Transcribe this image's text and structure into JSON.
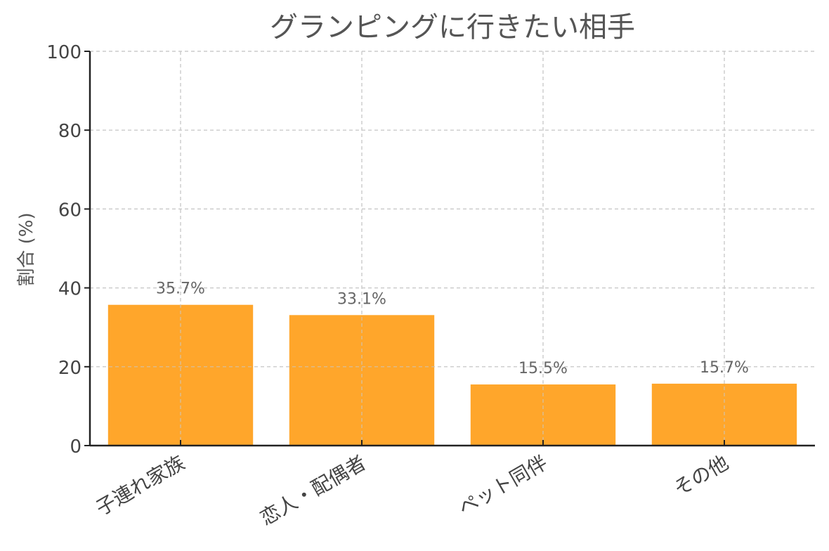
{
  "chart_data": {
    "type": "bar",
    "title": "グランピングに行きたい相手",
    "xlabel": "",
    "ylabel": "割合 (%)",
    "categories": [
      "子連れ家族",
      "恋人・配偶者",
      "ペット同伴",
      "その他"
    ],
    "values": [
      35.7,
      33.1,
      15.5,
      15.7
    ],
    "value_labels": [
      "35.7%",
      "33.1%",
      "15.5%",
      "15.7%"
    ],
    "ylim": [
      0,
      100
    ],
    "yticks": [
      0,
      20,
      40,
      60,
      80,
      100
    ],
    "grid": true,
    "legend": "none",
    "bar_color": "#FFA62B"
  }
}
